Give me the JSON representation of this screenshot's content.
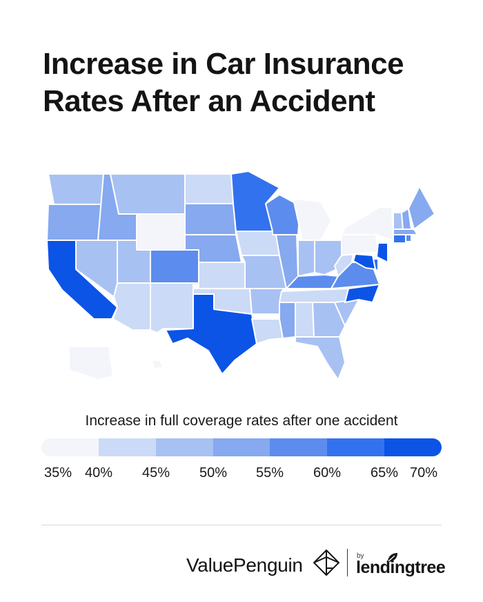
{
  "title_lines": [
    "Increase in Car Insurance",
    "Rates After an Accident"
  ],
  "legend": {
    "title": "Increase in full coverage rates after one accident",
    "colors": [
      "#f3f5fb",
      "#cbdaf6",
      "#a8c1f3",
      "#86a9ef",
      "#5c8cee",
      "#3272ee",
      "#0b54e6"
    ],
    "ticks": [
      "35%",
      "40%",
      "45%",
      "50%",
      "55%",
      "60%",
      "65%",
      "70%"
    ]
  },
  "map_data": {
    "type": "choropleth",
    "region": "United States",
    "bin_edges": [
      35,
      40,
      45,
      50,
      55,
      60,
      65,
      70
    ],
    "state_bins": {
      "WA": 2,
      "OR": 3,
      "CA": 6,
      "ID": 3,
      "NV": 2,
      "MT": 2,
      "WY": 0,
      "UT": 2,
      "AZ": 1,
      "CO": 4,
      "NM": 1,
      "ND": 1,
      "SD": 3,
      "NE": 3,
      "KS": 1,
      "OK": 1,
      "TX": 6,
      "MN": 5,
      "IA": 1,
      "MO": 2,
      "AR": 2,
      "LA": 1,
      "WI": 4,
      "IL": 3,
      "MI": 0,
      "IN": 2,
      "OH": 2,
      "KY": 4,
      "TN": 1,
      "MS": 3,
      "AL": 1,
      "GA": 2,
      "FL": 2,
      "SC": 2,
      "NC": 6,
      "VA": 4,
      "WV": 1,
      "PA": 0,
      "NY": 0,
      "VT": 2,
      "NH": 3,
      "ME": 3,
      "MA": 3,
      "CT": 5,
      "RI": 4,
      "NJ": 6,
      "DE": 5,
      "MD": 6,
      "AK": 0,
      "HI": 0
    }
  },
  "brand": {
    "valuepenguin": "ValuePenguin",
    "by": "by",
    "lendingtree": "lendingtree"
  }
}
